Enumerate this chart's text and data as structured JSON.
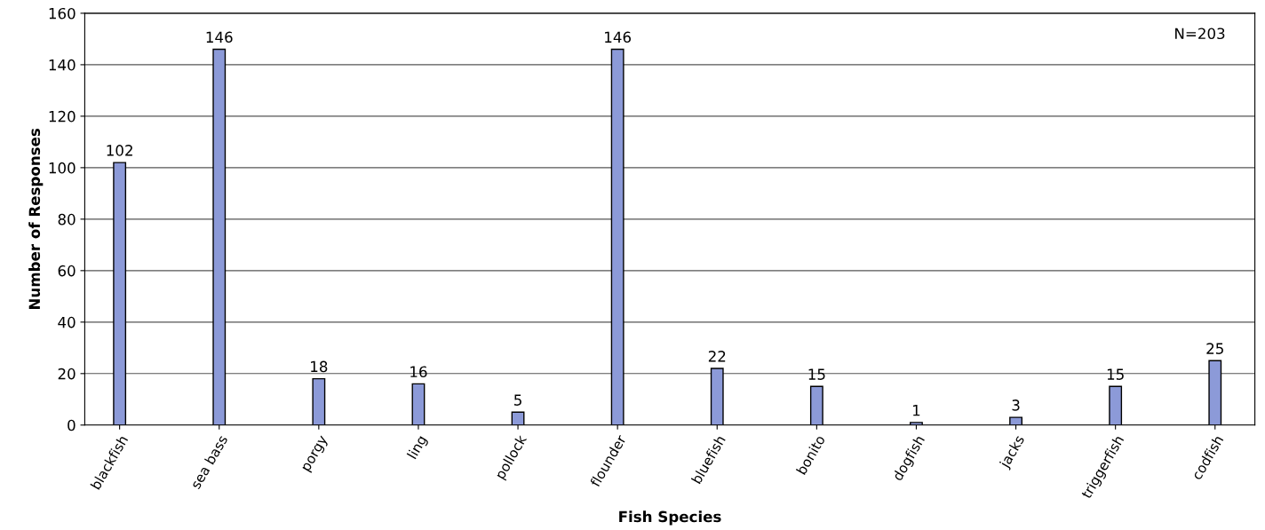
{
  "chart_data": {
    "type": "bar",
    "xlabel": "Fish Species",
    "ylabel": "Number of Responses",
    "categories": [
      "blackfish",
      "sea bass",
      "porgy",
      "ling",
      "pollock",
      "flounder",
      "bluefish",
      "bonito",
      "dogfish",
      "jacks",
      "triggerfish",
      "codfish"
    ],
    "values": [
      102,
      146,
      18,
      16,
      5,
      146,
      22,
      15,
      1,
      3,
      15,
      25
    ],
    "color": "#8c9ad8",
    "ylim": [
      0,
      160
    ],
    "yticks": [
      0,
      20,
      40,
      60,
      80,
      100,
      120,
      140,
      160
    ],
    "grid": "y",
    "data_labels": true,
    "annotations": [
      "N=203"
    ]
  }
}
